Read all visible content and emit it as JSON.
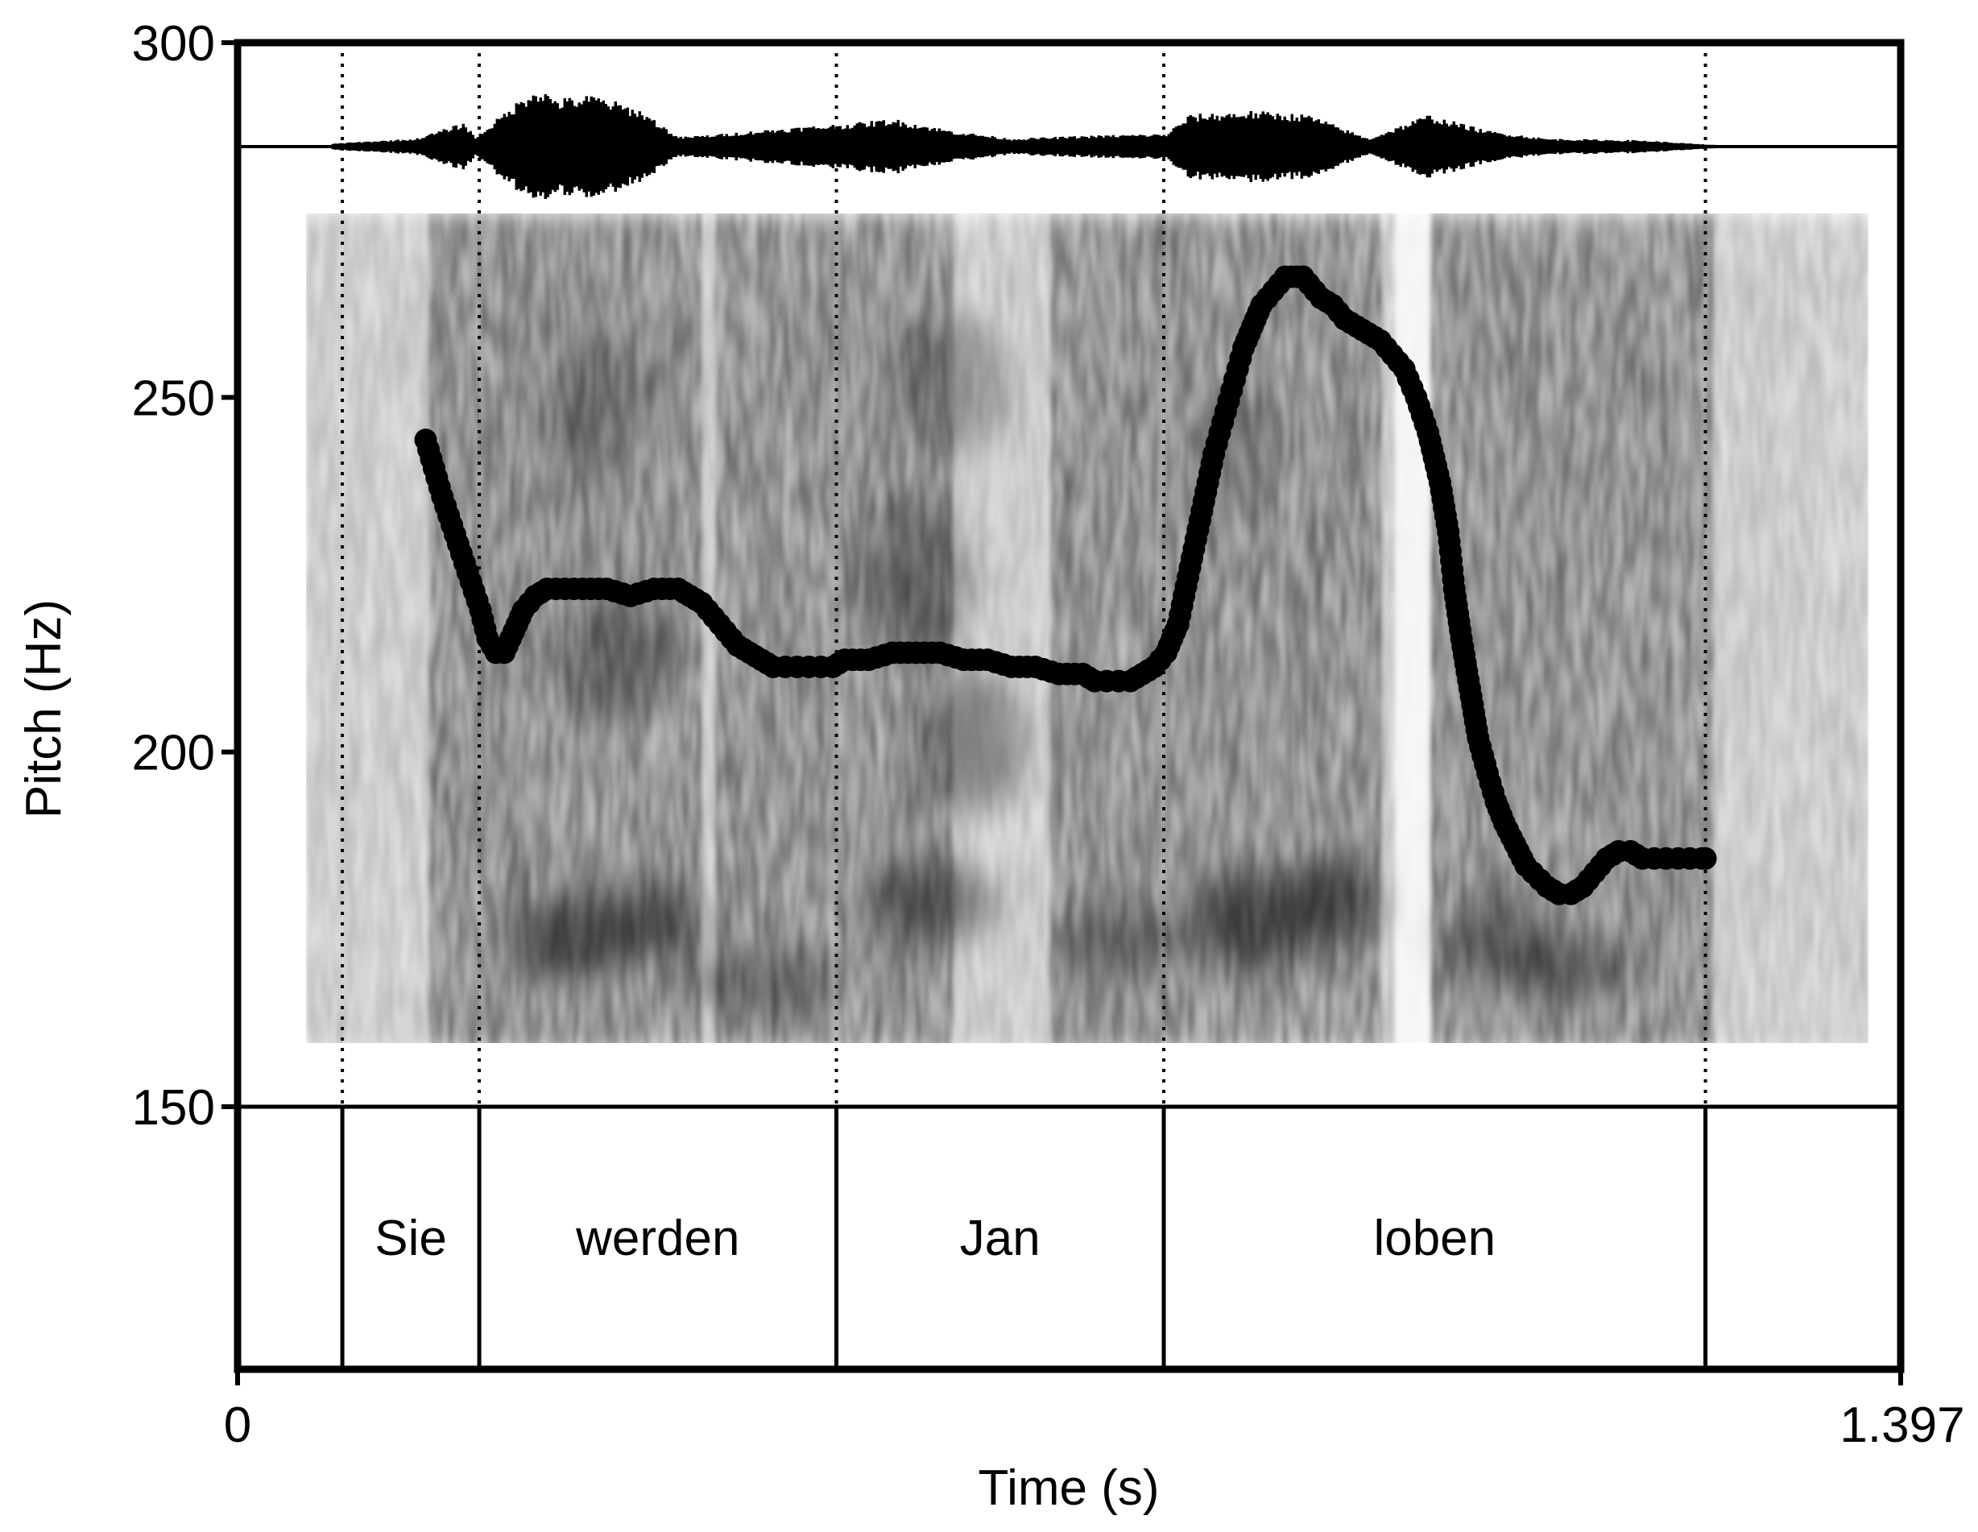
{
  "chart_data": {
    "type": "line",
    "xlabel": "Time (s)",
    "ylabel": "Pitch (Hz)",
    "xlim": [
      0,
      1.397
    ],
    "ylim": [
      150,
      300
    ],
    "x_tick_labels": [
      "0",
      "1.397"
    ],
    "y_ticks": [
      150,
      200,
      250,
      300
    ],
    "y_tick_labels": [
      "150",
      "200",
      "250",
      "300"
    ],
    "grid": false,
    "legend": "none",
    "word_boundaries": [
      0.088,
      0.203,
      0.503,
      0.778,
      1.233
    ],
    "words": [
      {
        "text": "Sie",
        "start": 0.088,
        "end": 0.203
      },
      {
        "text": "werden",
        "start": 0.203,
        "end": 0.503
      },
      {
        "text": "Jan",
        "start": 0.503,
        "end": 0.778
      },
      {
        "text": "loben",
        "start": 0.778,
        "end": 1.233
      }
    ],
    "series": [
      {
        "x": [
          0.158,
          0.165,
          0.172,
          0.18,
          0.188,
          0.196,
          0.204,
          0.21,
          0.217,
          0.224,
          0.232,
          0.24,
          0.25,
          0.26,
          0.275,
          0.29,
          0.31,
          0.33,
          0.35,
          0.37,
          0.38,
          0.39,
          0.4,
          0.41,
          0.42,
          0.43,
          0.44,
          0.45,
          0.46,
          0.47,
          0.48,
          0.49,
          0.5,
          0.51,
          0.53,
          0.55,
          0.57,
          0.59,
          0.61,
          0.63,
          0.65,
          0.67,
          0.69,
          0.71,
          0.72,
          0.73,
          0.74,
          0.75,
          0.76,
          0.77,
          0.78,
          0.785,
          0.79,
          0.795,
          0.8,
          0.805,
          0.81,
          0.815,
          0.82,
          0.825,
          0.83,
          0.835,
          0.84,
          0.845,
          0.85,
          0.855,
          0.86,
          0.865,
          0.87,
          0.875,
          0.88,
          0.885,
          0.89,
          0.895,
          0.9,
          0.905,
          0.91,
          0.92,
          0.93,
          0.94,
          0.95,
          0.96,
          0.97,
          0.98,
          0.99,
          1.0,
          1.01,
          1.017,
          1.022,
          1.028,
          1.035,
          1.042,
          1.05,
          1.057,
          1.064,
          1.07,
          1.076,
          1.082,
          1.088,
          1.094,
          1.1,
          1.11,
          1.12,
          1.13,
          1.14,
          1.15,
          1.16,
          1.17,
          1.18,
          1.19,
          1.2,
          1.21,
          1.22,
          1.23,
          1.233
        ],
        "y": [
          244,
          240,
          236,
          232,
          228,
          224,
          220,
          216,
          214,
          214,
          217,
          220,
          222,
          223,
          223,
          223,
          223,
          222,
          223,
          223,
          222,
          221,
          219,
          217,
          215,
          214,
          213,
          212,
          212,
          212,
          212,
          212,
          212,
          213,
          213,
          214,
          214,
          214,
          213,
          213,
          212,
          212,
          211,
          211,
          210,
          210,
          210,
          210,
          211,
          212,
          214,
          216,
          218,
          222,
          226,
          230,
          234,
          238,
          242,
          245,
          248,
          251,
          254,
          257,
          259,
          261,
          263,
          264,
          265,
          266,
          267,
          267,
          267,
          267,
          266,
          265,
          264,
          263,
          261,
          260,
          259,
          258,
          256,
          254,
          250,
          245,
          238,
          231,
          223,
          216,
          209,
          202,
          197,
          193,
          190,
          188,
          186,
          184,
          183,
          182,
          181,
          180,
          180,
          181,
          183,
          185,
          186,
          186,
          185,
          185,
          185,
          185,
          185,
          185,
          185
        ]
      }
    ]
  }
}
